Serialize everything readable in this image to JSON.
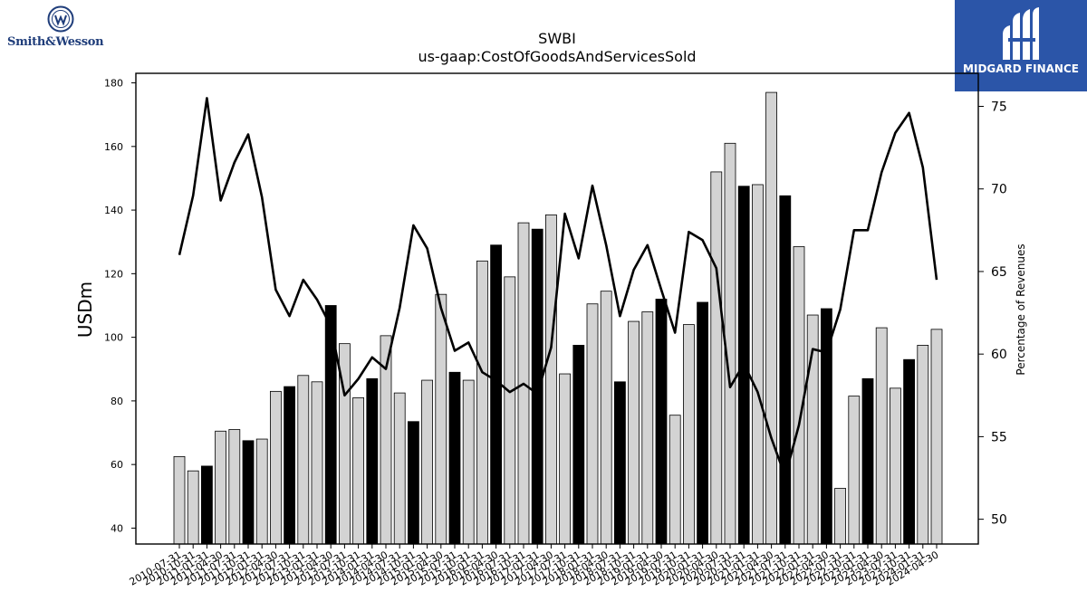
{
  "brand": {
    "left_name": "Smith&Wesson",
    "right_name": "MIDGARD FINANCE"
  },
  "chart_data": {
    "type": "bar",
    "title": "SWBI",
    "subtitle": "us-gaap:CostOfGoodsAndServicesSold",
    "ylabel": "USDm",
    "y2label": "Percentage of Revenues",
    "ylim": [
      35,
      183
    ],
    "y2lim": [
      48.5,
      77
    ],
    "yticks": [
      40,
      60,
      80,
      100,
      120,
      140,
      160,
      180
    ],
    "y2ticks": [
      50,
      55,
      60,
      65,
      70,
      75
    ],
    "grid": false,
    "bar_fill_default": "#d3d3d3",
    "bar_fill_highlight": "#000000",
    "line_color": "#000000",
    "categories": [
      "2010-07-31",
      "2010-10-31",
      "2011-01-31",
      "2011-04-30",
      "2011-07-31",
      "2011-10-31",
      "2012-01-31",
      "2012-04-30",
      "2012-07-31",
      "2012-10-31",
      "2013-01-31",
      "2013-04-30",
      "2013-07-31",
      "2013-10-31",
      "2014-01-31",
      "2014-04-30",
      "2014-07-31",
      "2014-10-31",
      "2015-01-31",
      "2015-04-30",
      "2015-07-31",
      "2015-10-31",
      "2016-01-31",
      "2016-04-30",
      "2016-07-31",
      "2016-10-31",
      "2017-01-31",
      "2017-04-30",
      "2017-07-31",
      "2017-10-31",
      "2018-01-31",
      "2018-04-30",
      "2018-07-31",
      "2018-10-31",
      "2019-01-31",
      "2019-04-30",
      "2019-07-31",
      "2019-10-31",
      "2020-01-31",
      "2020-04-30",
      "2020-07-31",
      "2020-10-31",
      "2021-01-31",
      "2021-04-30",
      "2021-07-31",
      "2021-10-31",
      "2022-01-31",
      "2022-04-30",
      "2022-07-31",
      "2022-10-31",
      "2023-01-31",
      "2023-04-30",
      "2023-07-31",
      "2023-10-31",
      "2024-01-31",
      "2024-04-30"
    ],
    "series": [
      {
        "kind": "bar",
        "axis": "left",
        "values": [
          62.5,
          58,
          59.5,
          70.5,
          71,
          67.5,
          68,
          83,
          84.5,
          88,
          86,
          110,
          98,
          81,
          87,
          100.5,
          82.5,
          73.5,
          86.5,
          113.5,
          89,
          86.5,
          124,
          129,
          119,
          136,
          134,
          138.5,
          88.5,
          97.5,
          110.5,
          114.5,
          86,
          105,
          108,
          112,
          75.5,
          104,
          111,
          152,
          161,
          147.5,
          148,
          177,
          144.5,
          128.5,
          107,
          109,
          52.5,
          81.5,
          87,
          103,
          84,
          93,
          97.5,
          102.5
        ],
        "highlight": [
          false,
          false,
          true,
          false,
          false,
          true,
          false,
          false,
          true,
          false,
          false,
          true,
          false,
          false,
          true,
          false,
          false,
          true,
          false,
          false,
          true,
          false,
          false,
          true,
          false,
          false,
          true,
          false,
          false,
          true,
          false,
          false,
          true,
          false,
          false,
          true,
          false,
          false,
          true,
          false,
          false,
          true,
          false,
          false,
          true,
          false,
          false,
          true,
          false,
          false,
          true,
          false,
          false,
          true,
          false,
          false
        ]
      },
      {
        "kind": "line",
        "axis": "right",
        "values": [
          66,
          69.6,
          75.5,
          69.3,
          71.6,
          73.3,
          69.5,
          63.9,
          62.3,
          64.5,
          63.3,
          61.7,
          57.5,
          58.5,
          59.8,
          59.1,
          62.8,
          67.8,
          66.4,
          62.8,
          60.2,
          60.7,
          58.9,
          58.4,
          57.7,
          58.2,
          57.6,
          60.4,
          68.5,
          65.8,
          70.2,
          66.6,
          62.3,
          65.1,
          66.6,
          63.9,
          61.3,
          67.4,
          66.9,
          65.2,
          58,
          59.4,
          57.7,
          54.9,
          52.6,
          55.7,
          60.3,
          60.1,
          62.7,
          67.5,
          67.5,
          71,
          73.4,
          74.6,
          71.3,
          64.5
        ]
      }
    ]
  }
}
